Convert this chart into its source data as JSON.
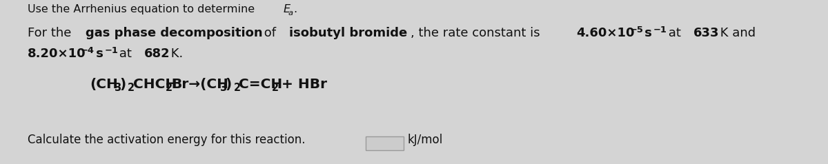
{
  "background_color": "#d4d4d4",
  "text_color": "#111111",
  "box_fill": "#cccccc",
  "box_edge": "#999999",
  "header": "Use the Arrhenius equation to determine ",
  "header_E": "E",
  "header_a": "a",
  "header_dot": ".",
  "line1_a": "For the ",
  "line1_b": "gas phase decomposition",
  "line1_c": " of ",
  "line1_d": "isobutyl bromide",
  "line1_e": ", the rate constant is ",
  "line1_f": "4.60×10",
  "line1_exp1": "−5",
  "line1_g": " s",
  "line1_exp2": "−1",
  "line1_h": " at ",
  "line1_i": "633",
  "line1_j": " K and",
  "line2_a": "8.20×10",
  "line2_exp1": "−4",
  "line2_b": " s",
  "line2_exp2": "−1",
  "line2_c": " at ",
  "line2_d": "682",
  "line2_e": " K.",
  "eq_parts": [
    {
      "t": "(CH",
      "sub": false
    },
    {
      "t": "3",
      "sub": true
    },
    {
      "t": ")",
      "sub": false
    },
    {
      "t": "2",
      "sub": true
    },
    {
      "t": "CHCH",
      "sub": false
    },
    {
      "t": "2",
      "sub": true
    },
    {
      "t": "Br→(CH",
      "sub": false
    },
    {
      "t": "3",
      "sub": true
    },
    {
      "t": ")",
      "sub": false
    },
    {
      "t": "2",
      "sub": true
    },
    {
      "t": "C=CH",
      "sub": false
    },
    {
      "t": "2",
      "sub": true
    },
    {
      "t": " + HBr",
      "sub": false
    }
  ],
  "footer_a": "Calculate the activation energy for this reaction.",
  "footer_b": "kJ/mol",
  "fs_header": 11.5,
  "fs_body": 13.0,
  "fs_eq": 14.5,
  "fs_sub_scale": 0.72,
  "sup_raise": 0.32,
  "sub_drop": 0.25
}
